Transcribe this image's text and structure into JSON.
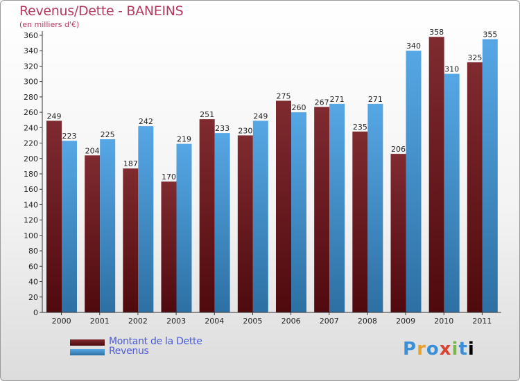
{
  "chart_data": {
    "type": "bar",
    "title": "Revenus/Dette - BANEINS",
    "subtitle": "(en milliers d'€)",
    "categories": [
      "2000",
      "2001",
      "2002",
      "2003",
      "2004",
      "2005",
      "2006",
      "2007",
      "2008",
      "2009",
      "2010",
      "2011"
    ],
    "series": [
      {
        "name": "Montant de la Dette",
        "values": [
          249,
          204,
          187,
          170,
          251,
          230,
          275,
          267,
          235,
          206,
          358,
          325
        ],
        "color": "#6e0e14"
      },
      {
        "name": "Revenus",
        "values": [
          223,
          225,
          242,
          219,
          233,
          249,
          260,
          271,
          271,
          340,
          310,
          355
        ],
        "color": "#3f9be2"
      }
    ],
    "ylim": [
      0,
      360
    ],
    "ytick_step": 20,
    "grid": false,
    "legend_position": "bottom-left"
  },
  "logo": {
    "letters": [
      "P",
      "r",
      "o",
      "x",
      "i",
      "t",
      "i"
    ]
  }
}
